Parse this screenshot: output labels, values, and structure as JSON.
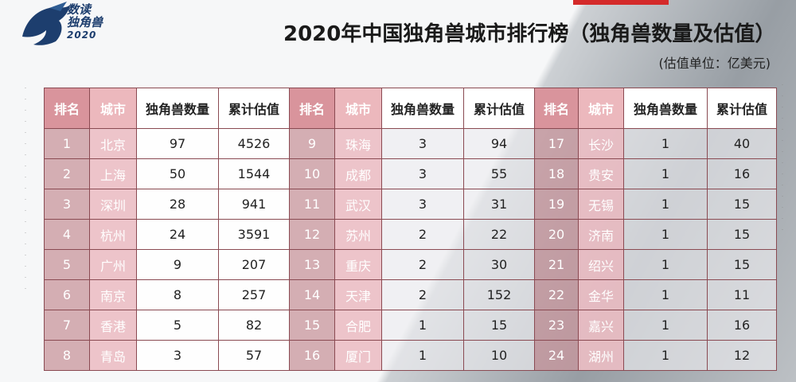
{
  "logo": {
    "line1": "数读",
    "line2": "独角兽",
    "line3": "2020"
  },
  "title": "2020年中国独角兽城市排行榜（独角兽数量及估值）",
  "unit_note": "(估值单位：亿美元)",
  "colors": {
    "rank_header": "#d9949c",
    "city_header": "#ecb8bd",
    "border": "#8a4a52",
    "logo_blue": "#1d3e6e"
  },
  "table": {
    "headers": [
      "排名",
      "城市",
      "独角兽数量",
      "累计估值",
      "排名",
      "城市",
      "独角兽数量",
      "累计估值",
      "排名",
      "城市",
      "独角兽数量",
      "累计估值"
    ],
    "rows": [
      [
        "1",
        "北京",
        "97",
        "4526",
        "9",
        "珠海",
        "3",
        "94",
        "17",
        "长沙",
        "1",
        "40"
      ],
      [
        "2",
        "上海",
        "50",
        "1544",
        "10",
        "成都",
        "3",
        "55",
        "18",
        "贵安",
        "1",
        "16"
      ],
      [
        "3",
        "深圳",
        "28",
        "941",
        "11",
        "武汉",
        "3",
        "31",
        "19",
        "无锡",
        "1",
        "15"
      ],
      [
        "4",
        "杭州",
        "24",
        "3591",
        "12",
        "苏州",
        "2",
        "22",
        "20",
        "济南",
        "1",
        "15"
      ],
      [
        "5",
        "广州",
        "9",
        "207",
        "13",
        "重庆",
        "2",
        "30",
        "21",
        "绍兴",
        "1",
        "15"
      ],
      [
        "6",
        "南京",
        "8",
        "257",
        "14",
        "天津",
        "2",
        "152",
        "22",
        "金华",
        "1",
        "11"
      ],
      [
        "7",
        "香港",
        "5",
        "82",
        "15",
        "合肥",
        "1",
        "15",
        "23",
        "嘉兴",
        "1",
        "16"
      ],
      [
        "8",
        "青岛",
        "3",
        "57",
        "16",
        "厦门",
        "1",
        "10",
        "24",
        "湖州",
        "1",
        "12"
      ]
    ]
  }
}
